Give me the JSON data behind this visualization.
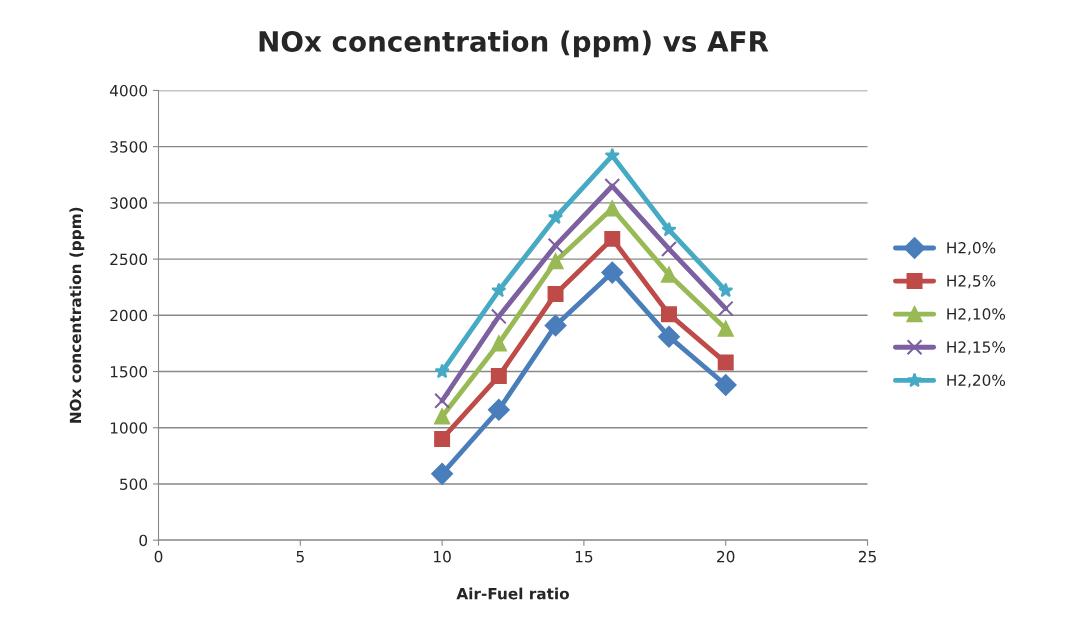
{
  "chart_data": {
    "type": "line",
    "title": "NOx concentration (ppm) vs AFR",
    "xlabel": "Air-Fuel ratio",
    "ylabel": "NOx concentration (ppm)",
    "x": [
      10,
      12,
      14,
      16,
      18,
      20
    ],
    "series": [
      {
        "name": "H2,0%",
        "color": "#4a7ebb",
        "marker": "diamond",
        "values": [
          590,
          1160,
          1910,
          2380,
          1810,
          1380
        ]
      },
      {
        "name": "H2,5%",
        "color": "#be4b48",
        "marker": "square",
        "values": [
          900,
          1460,
          2190,
          2680,
          2010,
          1580
        ]
      },
      {
        "name": "H2,10%",
        "color": "#98b954",
        "marker": "triangle",
        "values": [
          1100,
          1750,
          2480,
          2950,
          2360,
          1880
        ]
      },
      {
        "name": "H2,15%",
        "color": "#7d60a0",
        "marker": "cross",
        "values": [
          1240,
          1990,
          2620,
          3150,
          2590,
          2060
        ]
      },
      {
        "name": "H2,20%",
        "color": "#46aac5",
        "marker": "star",
        "values": [
          1500,
          2220,
          2870,
          3420,
          2760,
          2220
        ]
      }
    ],
    "xlim": [
      0,
      25
    ],
    "xticks": [
      0,
      5,
      10,
      15,
      20,
      25
    ],
    "ylim": [
      0,
      4000
    ],
    "yticks": [
      0,
      500,
      1000,
      1500,
      2000,
      2500,
      3000,
      3500,
      4000
    ],
    "grid": "y",
    "legend": "right",
    "line_style": "solid"
  }
}
